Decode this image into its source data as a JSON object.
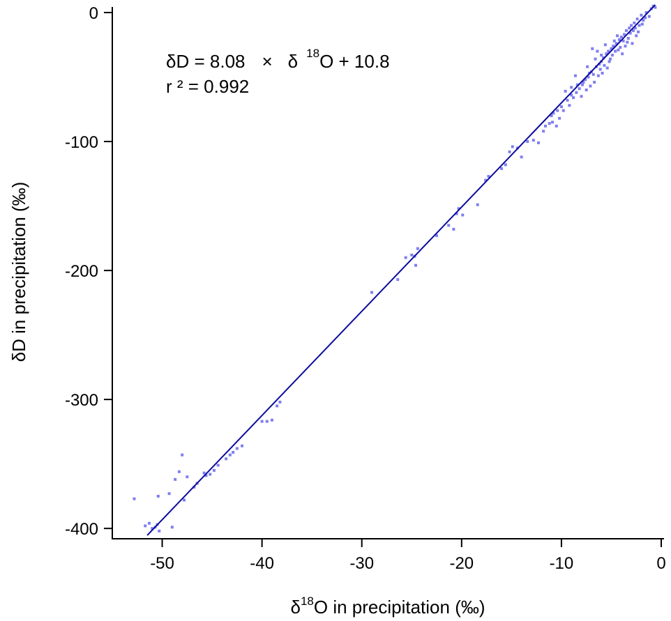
{
  "chart_data": {
    "type": "scatter",
    "title": "",
    "x_axis": {
      "label_prefix": "δ",
      "label_sup": "18",
      "label_rest": "O in precipitation (‰)",
      "range": [
        -55,
        0
      ],
      "ticks": [
        -50,
        -40,
        -30,
        -20,
        -10,
        0
      ],
      "tick_labels": [
        "-50",
        "-40",
        "-30",
        "-20",
        "-10",
        "0"
      ]
    },
    "y_axis": {
      "label": "δD in precipitation (‰)",
      "range": [
        -408,
        0
      ],
      "ticks": [
        0,
        -100,
        -200,
        -300,
        -400
      ],
      "tick_labels": [
        "0",
        "-100",
        "-200",
        "-300",
        "-400"
      ]
    },
    "grid": false,
    "annotation": {
      "eq_part1": "δD = 8.08",
      "eq_times": "×",
      "eq_delta": "δ",
      "eq_sup": "18",
      "eq_part2": "O + 10.8",
      "r2": "r ² = 0.992"
    },
    "regression": {
      "slope": 8.08,
      "intercept": 10.8,
      "x_from": -51.5,
      "x_to": -0.6,
      "color": "#0b0b9c"
    },
    "point_color": "#7f7ff0",
    "points": [
      [
        -52.8,
        -377
      ],
      [
        -51.7,
        -398
      ],
      [
        -51.3,
        -396
      ],
      [
        -51.0,
        -400
      ],
      [
        -50.7,
        -399
      ],
      [
        -50.5,
        -397
      ],
      [
        -50.3,
        -402
      ],
      [
        -50.4,
        -375
      ],
      [
        -49.3,
        -373
      ],
      [
        -49.0,
        -399
      ],
      [
        -48.7,
        -362
      ],
      [
        -48.3,
        -356
      ],
      [
        -48.0,
        -343
      ],
      [
        -47.8,
        -378
      ],
      [
        -47.5,
        -360
      ],
      [
        -46.8,
        -368
      ],
      [
        -46.5,
        -365
      ],
      [
        -45.8,
        -357
      ],
      [
        -45.6,
        -359
      ],
      [
        -45.2,
        -358
      ],
      [
        -44.8,
        -355
      ],
      [
        -44.4,
        -351
      ],
      [
        -43.6,
        -346
      ],
      [
        -43.2,
        -343
      ],
      [
        -42.9,
        -341
      ],
      [
        -42.5,
        -338
      ],
      [
        -42.0,
        -336
      ],
      [
        -40.0,
        -317
      ],
      [
        -39.5,
        -317
      ],
      [
        -39.0,
        -316
      ],
      [
        -38.5,
        -305
      ],
      [
        -38.2,
        -302
      ],
      [
        -29.0,
        -217
      ],
      [
        -26.4,
        -207
      ],
      [
        -25.6,
        -190
      ],
      [
        -25.0,
        -188
      ],
      [
        -24.7,
        -189
      ],
      [
        -24.4,
        -183
      ],
      [
        -24.6,
        -196
      ],
      [
        -22.5,
        -173
      ],
      [
        -21.3,
        -165
      ],
      [
        -20.8,
        -168
      ],
      [
        -20.5,
        -156
      ],
      [
        -20.3,
        -152
      ],
      [
        -19.9,
        -157
      ],
      [
        -18.4,
        -149
      ],
      [
        -17.6,
        -130
      ],
      [
        -17.3,
        -127
      ],
      [
        -16.0,
        -121
      ],
      [
        -15.6,
        -118
      ],
      [
        -15.2,
        -108
      ],
      [
        -14.9,
        -104
      ],
      [
        -14.4,
        -105
      ],
      [
        -14.0,
        -112
      ],
      [
        -13.4,
        -100
      ],
      [
        -12.8,
        -99
      ],
      [
        -12.3,
        -101
      ],
      [
        -11.8,
        -92
      ],
      [
        -11.6,
        -88
      ],
      [
        -11.2,
        -86
      ],
      [
        -10.9,
        -85
      ],
      [
        -10.5,
        -88
      ],
      [
        -10.8,
        -78
      ],
      [
        -10.4,
        -76
      ],
      [
        -10.0,
        -73
      ],
      [
        -9.8,
        -76
      ],
      [
        -9.4,
        -68
      ],
      [
        -9.0,
        -64
      ],
      [
        -8.8,
        -66
      ],
      [
        -8.5,
        -62
      ],
      [
        -8.2,
        -59
      ],
      [
        -7.9,
        -56
      ],
      [
        -7.6,
        -52
      ],
      [
        -7.3,
        -50
      ],
      [
        -7.0,
        -46
      ],
      [
        -6.8,
        -48
      ],
      [
        -6.5,
        -42
      ],
      [
        -6.2,
        -40
      ],
      [
        -6.0,
        -38
      ],
      [
        -5.8,
        -35
      ],
      [
        -5.5,
        -32
      ],
      [
        -5.3,
        -30
      ],
      [
        -5.0,
        -28
      ],
      [
        -4.8,
        -26
      ],
      [
        -4.5,
        -24
      ],
      [
        -4.2,
        -21
      ],
      [
        -4.0,
        -19
      ],
      [
        -3.7,
        -17
      ],
      [
        -3.5,
        -14
      ],
      [
        -3.2,
        -12
      ],
      [
        -3.0,
        -10
      ],
      [
        -2.7,
        -8
      ],
      [
        -2.4,
        -5
      ],
      [
        -2.0,
        -2
      ],
      [
        -1.5,
        0
      ],
      [
        -1.0,
        3
      ],
      [
        -0.8,
        5
      ],
      [
        -0.6,
        4
      ],
      [
        -7.8,
        -54
      ],
      [
        -7.2,
        -47
      ],
      [
        -6.6,
        -36
      ],
      [
        -6.4,
        -30
      ],
      [
        -6.1,
        -44
      ],
      [
        -5.6,
        -25
      ],
      [
        -5.2,
        -38
      ],
      [
        -4.9,
        -33
      ],
      [
        -4.4,
        -18
      ],
      [
        -4.1,
        -27
      ],
      [
        -3.8,
        -22
      ],
      [
        -3.4,
        -23
      ],
      [
        -3.1,
        -16
      ],
      [
        -2.8,
        -14
      ],
      [
        -2.5,
        -18
      ],
      [
        -6.9,
        -28
      ],
      [
        -7.5,
        -60
      ],
      [
        -8.6,
        -49
      ],
      [
        -9.2,
        -72
      ],
      [
        -9.6,
        -61
      ],
      [
        -10.2,
        -82
      ],
      [
        -11.0,
        -80
      ],
      [
        -8.0,
        -65
      ],
      [
        -5.9,
        -47
      ],
      [
        -5.4,
        -43
      ],
      [
        -4.6,
        -30
      ],
      [
        -3.9,
        -32
      ],
      [
        -3.3,
        -20
      ],
      [
        -2.9,
        -24
      ],
      [
        -2.2,
        -10
      ],
      [
        -1.8,
        -6
      ],
      [
        -1.2,
        -3
      ],
      [
        -6.7,
        -54
      ],
      [
        -7.1,
        -57
      ],
      [
        -5.1,
        -36
      ],
      [
        -4.3,
        -29
      ],
      [
        -6.3,
        -49
      ],
      [
        -5.7,
        -41
      ],
      [
        -4.7,
        -22
      ],
      [
        -3.6,
        -26
      ],
      [
        -2.6,
        -12
      ],
      [
        -2.3,
        -15
      ],
      [
        -1.9,
        -9
      ],
      [
        -1.6,
        -4
      ],
      [
        -8.4,
        -56
      ],
      [
        -9.0,
        -58
      ],
      [
        -7.4,
        -42
      ],
      [
        -6.0,
        -33
      ]
    ]
  }
}
